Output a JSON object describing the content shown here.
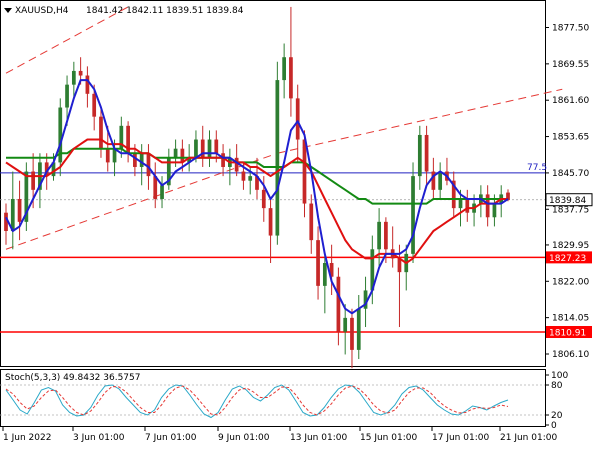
{
  "header": {
    "symbol_label": "XAUUSD,H4",
    "ohlc_label": "1841.42 1842.11 1839.51 1839.84"
  },
  "colors": {
    "bull_candle": "#2e7d32",
    "bear_candle": "#c62828",
    "ma_fast": "#1f1fd0",
    "ma_mid": "#e01010",
    "ma_slow": "#138a13",
    "channel": "#e53935",
    "horizontal_line": "#ff0000",
    "fib_line": "#2020c0",
    "stoch_main": "#2aa8c8",
    "stoch_signal": "#e53935"
  },
  "chart_data": [
    {
      "type": "candlestick",
      "symbol": "XAUUSD",
      "timeframe": "H4",
      "last_price": 1839.84,
      "ylim": [
        1802,
        1884
      ],
      "y_ticks": [
        "1877.50",
        "1869.55",
        "1861.60",
        "1853.65",
        "1845.70",
        "1837.75",
        "1829.95",
        "1822.00",
        "1814.05",
        "1806.10"
      ],
      "x_ticks": [
        "1 Jun 2022",
        "3 Jun 01:00",
        "7 Jun 01:00",
        "9 Jun 01:00",
        "13 Jun 01:00",
        "15 Jun 01:00",
        "17 Jun 01:00",
        "21 Jun 01:00"
      ],
      "horizontal_levels": [
        {
          "label": "1827.23",
          "value": 1827.23
        },
        {
          "label": "1810.91",
          "value": 1810.91
        }
      ],
      "fib_level": {
        "label": "77.5",
        "value": 1845.7
      },
      "price_tag": "1839.84",
      "candles": [
        [
          1837.0,
          1839.0,
          1830.0,
          1833.0
        ],
        [
          1833.0,
          1846.0,
          1829.0,
          1840.0
        ],
        [
          1840.0,
          1844.0,
          1831.0,
          1835.0
        ],
        [
          1835.0,
          1848.0,
          1833.0,
          1846.0
        ],
        [
          1846.0,
          1850.0,
          1838.0,
          1842.0
        ],
        [
          1842.0,
          1850.0,
          1838.0,
          1848.0
        ],
        [
          1848.0,
          1850.0,
          1842.0,
          1845.0
        ],
        [
          1845.0,
          1850.0,
          1844.0,
          1848.0
        ],
        [
          1848.0,
          1862.0,
          1845.0,
          1860.0
        ],
        [
          1860.0,
          1867.0,
          1856.0,
          1865.0
        ],
        [
          1865.0,
          1870.0,
          1862.0,
          1868.0
        ],
        [
          1868.0,
          1871.0,
          1865.0,
          1867.0
        ],
        [
          1867.0,
          1869.0,
          1860.0,
          1863.0
        ],
        [
          1863.0,
          1865.0,
          1855.0,
          1858.0
        ],
        [
          1858.0,
          1860.0,
          1849.0,
          1851.0
        ],
        [
          1851.0,
          1856.0,
          1846.0,
          1848.0
        ],
        [
          1848.0,
          1853.0,
          1845.0,
          1851.0
        ],
        [
          1851.0,
          1858.0,
          1849.0,
          1856.0
        ],
        [
          1856.0,
          1857.0,
          1848.0,
          1850.0
        ],
        [
          1850.0,
          1852.0,
          1845.0,
          1847.0
        ],
        [
          1847.0,
          1852.0,
          1843.0,
          1850.0
        ],
        [
          1850.0,
          1852.0,
          1842.0,
          1845.0
        ],
        [
          1845.0,
          1848.0,
          1838.0,
          1840.0
        ],
        [
          1840.0,
          1845.0,
          1838.0,
          1843.0
        ],
        [
          1843.0,
          1851.0,
          1842.0,
          1849.0
        ],
        [
          1849.0,
          1853.0,
          1847.0,
          1851.0
        ],
        [
          1851.0,
          1853.0,
          1846.0,
          1848.0
        ],
        [
          1848.0,
          1852.0,
          1846.0,
          1849.0
        ],
        [
          1849.0,
          1855.0,
          1848.0,
          1853.0
        ],
        [
          1853.0,
          1856.0,
          1847.0,
          1849.0
        ],
        [
          1849.0,
          1855.0,
          1847.0,
          1853.0
        ],
        [
          1853.0,
          1855.0,
          1848.0,
          1850.0
        ],
        [
          1850.0,
          1852.0,
          1845.0,
          1847.0
        ],
        [
          1847.0,
          1851.0,
          1843.0,
          1849.0
        ],
        [
          1849.0,
          1852.0,
          1845.0,
          1846.0
        ],
        [
          1846.0,
          1848.0,
          1842.0,
          1844.0
        ],
        [
          1844.0,
          1847.0,
          1841.0,
          1845.0
        ],
        [
          1845.0,
          1849.0,
          1840.0,
          1842.0
        ],
        [
          1842.0,
          1845.0,
          1835.0,
          1838.0
        ],
        [
          1838.0,
          1840.0,
          1826.0,
          1832.0
        ],
        [
          1832.0,
          1870.0,
          1830.0,
          1866.0
        ],
        [
          1866.0,
          1874.0,
          1862.0,
          1871.0
        ],
        [
          1871.0,
          1882.0,
          1858.0,
          1862.0
        ],
        [
          1862.0,
          1865.0,
          1848.0,
          1853.0
        ],
        [
          1853.0,
          1855.0,
          1836.0,
          1839.0
        ],
        [
          1839.0,
          1841.0,
          1828.0,
          1831.0
        ],
        [
          1831.0,
          1834.0,
          1818.0,
          1821.0
        ],
        [
          1821.0,
          1828.0,
          1815.0,
          1826.0
        ],
        [
          1826.0,
          1830.0,
          1819.0,
          1823.0
        ],
        [
          1823.0,
          1825.0,
          1808.0,
          1811.0
        ],
        [
          1811.0,
          1817.0,
          1806.0,
          1814.0
        ],
        [
          1814.0,
          1816.0,
          1803.0,
          1807.0
        ],
        [
          1807.0,
          1819.0,
          1805.0,
          1816.0
        ],
        [
          1816.0,
          1823.0,
          1812.0,
          1820.0
        ],
        [
          1820.0,
          1832.0,
          1817.0,
          1829.0
        ],
        [
          1829.0,
          1838.0,
          1825.0,
          1835.0
        ],
        [
          1835.0,
          1836.0,
          1826.0,
          1829.0
        ],
        [
          1829.0,
          1834.0,
          1825.0,
          1827.0
        ],
        [
          1827.0,
          1830.0,
          1812.0,
          1824.0
        ],
        [
          1824.0,
          1830.0,
          1820.0,
          1828.0
        ],
        [
          1828.0,
          1848.0,
          1826.0,
          1845.0
        ],
        [
          1845.0,
          1856.0,
          1842.0,
          1854.0
        ],
        [
          1854.0,
          1856.0,
          1843.0,
          1846.0
        ],
        [
          1846.0,
          1849.0,
          1840.0,
          1842.0
        ],
        [
          1842.0,
          1848.0,
          1840.0,
          1846.0
        ],
        [
          1846.0,
          1849.0,
          1843.0,
          1844.0
        ],
        [
          1844.0,
          1846.0,
          1836.0,
          1838.0
        ],
        [
          1838.0,
          1842.0,
          1834.0,
          1840.0
        ],
        [
          1840.0,
          1842.0,
          1835.0,
          1837.0
        ],
        [
          1837.0,
          1841.0,
          1834.0,
          1839.0
        ],
        [
          1839.0,
          1843.0,
          1836.0,
          1841.0
        ],
        [
          1841.0,
          1843.0,
          1834.0,
          1836.0
        ],
        [
          1836.0,
          1841.0,
          1834.0,
          1839.0
        ],
        [
          1839.0,
          1843.0,
          1836.0,
          1841.0
        ],
        [
          1841.4,
          1842.1,
          1839.5,
          1839.8
        ]
      ],
      "ma_fast_values": [
        1836,
        1833,
        1834,
        1837,
        1840,
        1843,
        1846,
        1848,
        1852,
        1857,
        1862,
        1866,
        1866,
        1864,
        1860,
        1855,
        1851,
        1850,
        1850,
        1849,
        1848,
        1847,
        1845,
        1843,
        1844,
        1846,
        1847,
        1848,
        1849,
        1850,
        1850,
        1850,
        1849,
        1849,
        1848,
        1847,
        1846,
        1845,
        1843,
        1840,
        1842,
        1848,
        1855,
        1857,
        1854,
        1846,
        1836,
        1828,
        1822,
        1819,
        1816,
        1815,
        1816,
        1817,
        1820,
        1825,
        1828,
        1828,
        1828,
        1829,
        1832,
        1838,
        1843,
        1845,
        1846,
        1845,
        1843,
        1841,
        1840,
        1840,
        1840,
        1839,
        1839,
        1839,
        1840
      ],
      "ma_mid_values": [
        1848,
        1847,
        1846,
        1845,
        1845,
        1845,
        1845,
        1846,
        1847,
        1849,
        1851,
        1852,
        1853,
        1853,
        1853,
        1852,
        1852,
        1852,
        1851,
        1851,
        1850,
        1850,
        1849,
        1848,
        1848,
        1848,
        1848,
        1849,
        1849,
        1849,
        1849,
        1849,
        1849,
        1848,
        1848,
        1848,
        1847,
        1847,
        1846,
        1845,
        1846,
        1847,
        1848,
        1849,
        1848,
        1846,
        1843,
        1840,
        1837,
        1834,
        1831,
        1829,
        1828,
        1827,
        1827,
        1828,
        1828,
        1828,
        1827,
        1826,
        1827,
        1829,
        1831,
        1833,
        1834,
        1835,
        1836,
        1837,
        1838,
        1838,
        1839,
        1839,
        1839,
        1840,
        1840
      ],
      "ma_slow_values": [
        1849,
        1849,
        1849,
        1849,
        1849,
        1849,
        1849,
        1849,
        1850,
        1850,
        1851,
        1851,
        1851,
        1851,
        1851,
        1851,
        1851,
        1851,
        1850,
        1850,
        1850,
        1850,
        1849,
        1849,
        1849,
        1849,
        1849,
        1849,
        1849,
        1849,
        1849,
        1849,
        1849,
        1849,
        1848,
        1848,
        1848,
        1848,
        1847,
        1847,
        1847,
        1847,
        1848,
        1848,
        1848,
        1847,
        1846,
        1845,
        1844,
        1843,
        1842,
        1841,
        1840,
        1840,
        1839,
        1839,
        1839,
        1839,
        1839,
        1839,
        1839,
        1839,
        1839,
        1840,
        1840,
        1840,
        1840,
        1840,
        1840,
        1840,
        1840,
        1840,
        1840,
        1840,
        1840
      ],
      "channel": {
        "upper": [
          [
            0,
            1867.5
          ],
          [
            18,
            1882.0
          ]
        ],
        "lower": [
          [
            0,
            1829.0
          ],
          [
            40,
            1850.0
          ]
        ],
        "upper2": [
          [
            40,
            1850.0
          ],
          [
            82,
            1864.0
          ]
        ]
      }
    },
    {
      "type": "line",
      "name": "Stoch(5,3,3)",
      "label": "Stoch(5,3,3) 49.8432 36.5757",
      "ylim": [
        0,
        100
      ],
      "y_ticks": [
        "100",
        "80",
        "20",
        "0"
      ],
      "levels": [
        20,
        80
      ],
      "main_values": [
        70,
        50,
        30,
        22,
        45,
        70,
        75,
        68,
        40,
        25,
        18,
        20,
        35,
        60,
        78,
        80,
        72,
        55,
        40,
        25,
        20,
        30,
        55,
        72,
        80,
        78,
        60,
        40,
        22,
        15,
        25,
        50,
        72,
        78,
        70,
        55,
        48,
        60,
        75,
        80,
        70,
        48,
        25,
        18,
        20,
        35,
        55,
        72,
        80,
        78,
        65,
        45,
        25,
        20,
        25,
        40,
        62,
        75,
        78,
        70,
        55,
        40,
        30,
        22,
        20,
        28,
        38,
        35,
        30,
        38,
        45,
        50
      ],
      "signal_values": [
        72,
        62,
        45,
        32,
        38,
        55,
        68,
        70,
        55,
        38,
        25,
        20,
        28,
        45,
        65,
        77,
        76,
        66,
        50,
        35,
        25,
        25,
        40,
        60,
        74,
        78,
        70,
        55,
        38,
        22,
        20,
        35,
        55,
        70,
        74,
        66,
        55,
        55,
        65,
        76,
        75,
        60,
        40,
        25,
        20,
        28,
        42,
        60,
        74,
        78,
        72,
        58,
        40,
        28,
        24,
        30,
        48,
        65,
        74,
        74,
        65,
        50,
        38,
        30,
        24,
        25,
        32,
        35,
        33,
        35,
        40,
        37
      ]
    }
  ]
}
